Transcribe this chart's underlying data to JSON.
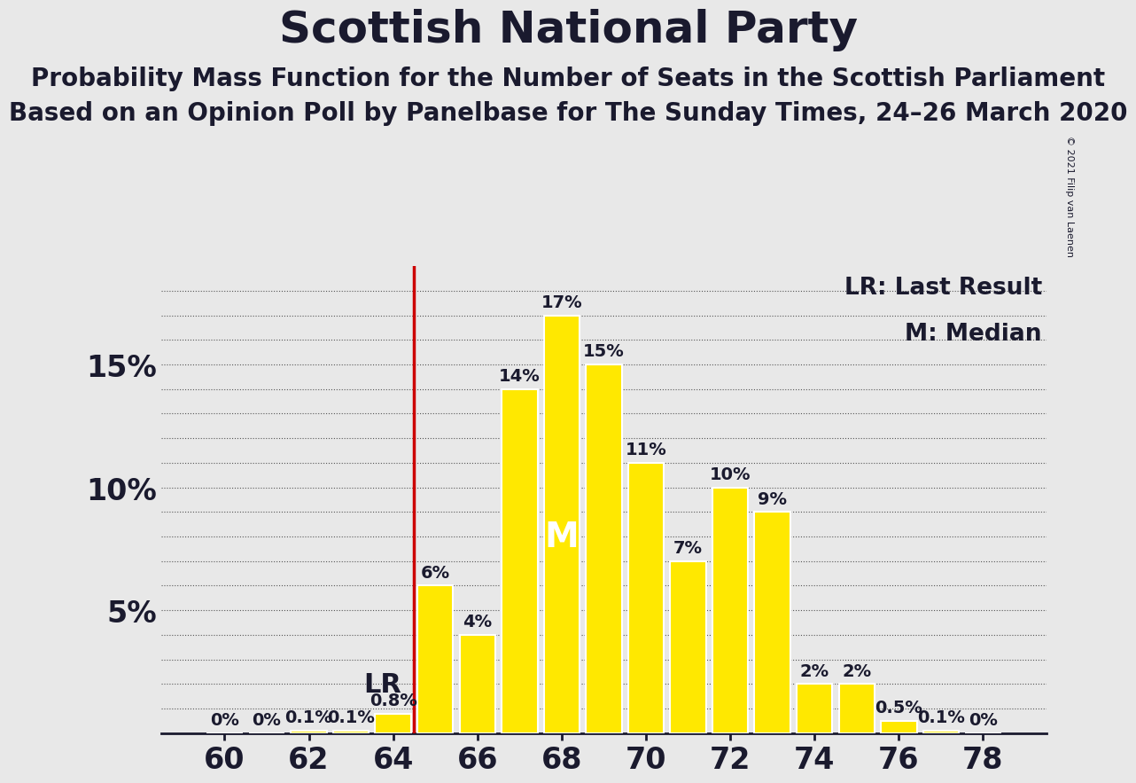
{
  "title": "Scottish National Party",
  "subtitle1": "Probability Mass Function for the Number of Seats in the Scottish Parliament",
  "subtitle2": "Based on an Opinion Poll by Panelbase for The Sunday Times, 24–26 March 2020",
  "copyright": "© 2021 Filip van Laenen",
  "legend_lr": "LR: Last Result",
  "legend_m": "M: Median",
  "lr_label": "LR",
  "m_label": "M",
  "lr_x": 64.5,
  "median_x": 68,
  "seats": [
    60,
    61,
    62,
    63,
    64,
    65,
    66,
    67,
    68,
    69,
    70,
    71,
    72,
    73,
    74,
    75,
    76,
    77,
    78
  ],
  "probs": [
    0.0,
    0.0,
    0.1,
    0.1,
    0.8,
    6.0,
    4.0,
    14.0,
    17.0,
    15.0,
    11.0,
    7.0,
    10.0,
    9.0,
    2.0,
    2.0,
    0.5,
    0.1,
    0.0
  ],
  "bar_color": "#FFE800",
  "bar_edge_color": "#FFFFFF",
  "lr_line_color": "#CC0000",
  "background_color": "#E8E8E8",
  "text_color": "#1A1A2E",
  "ylabel_ticks": [
    "5%",
    "10%",
    "15%"
  ],
  "yticks": [
    5,
    10,
    15
  ],
  "xlim": [
    58.5,
    79.5
  ],
  "ylim": [
    0,
    19
  ],
  "xticks": [
    60,
    62,
    64,
    66,
    68,
    70,
    72,
    74,
    76,
    78
  ],
  "bar_width": 0.85,
  "bar_label_fontsize": 14,
  "title_fontsize": 36,
  "subtitle_fontsize": 20,
  "axis_tick_fontsize": 24,
  "ytick_fontsize": 24,
  "legend_fontsize": 19,
  "lr_label_fontsize": 22,
  "m_label_fontsize": 28,
  "copyright_fontsize": 8
}
